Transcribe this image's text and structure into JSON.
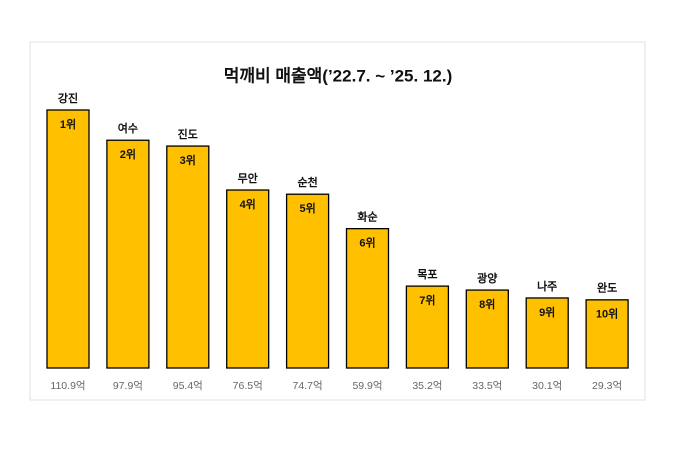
{
  "chart_data": {
    "type": "bar",
    "title": "먹깨비 매출액(’22.7. ~ ’25. 12.)",
    "categories": [
      "강진",
      "여수",
      "진도",
      "무안",
      "순천",
      "화순",
      "목포",
      "광양",
      "나주",
      "완도"
    ],
    "ranks": [
      "1위",
      "2위",
      "3위",
      "4위",
      "5위",
      "6위",
      "7위",
      "8위",
      "9위",
      "10위"
    ],
    "values": [
      110.9,
      97.9,
      95.4,
      76.5,
      74.7,
      59.9,
      35.2,
      33.5,
      30.1,
      29.3
    ],
    "value_labels": [
      "110.9억",
      "97.9억",
      "95.4억",
      "76.5억",
      "74.7억",
      "59.9억",
      "35.2억",
      "33.5억",
      "30.1억",
      "29.3억"
    ],
    "color": "#FFC000"
  }
}
